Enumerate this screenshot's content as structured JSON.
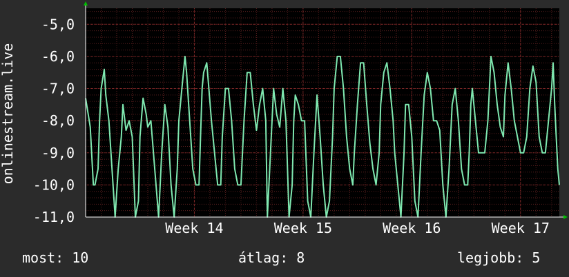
{
  "colors": {
    "background": "#2b2b2b",
    "plot_background": "#000000",
    "grid_minor": "#5a1e1e",
    "grid_major": "#8a2a2a",
    "line": "#7fe8b0",
    "axis_arrow": "#00c000",
    "text": "#ffffff"
  },
  "chart_data": {
    "type": "line",
    "title": "",
    "xlabel": "",
    "ylabel": "onlinestream.live",
    "ylim": [
      -11.0,
      -4.5
    ],
    "grid": true,
    "yticks": [
      -5.0,
      -6.0,
      -7.0,
      -8.0,
      -9.0,
      -10.0,
      -11.0
    ],
    "ytick_labels": [
      "-5,0",
      "-6,0",
      "-7,0",
      "-8,0",
      "-9,0",
      "-10,0",
      "-11,0"
    ],
    "xlim": [
      0,
      30.5
    ],
    "xticks": [
      7,
      14,
      21,
      28
    ],
    "xtick_labels": [
      "Week 14",
      "Week 15",
      "Week 16",
      "Week 17"
    ],
    "series": [
      {
        "values": [
          [
            0.0,
            -7.3
          ],
          [
            0.3,
            -8.2
          ],
          [
            0.5,
            -10.0
          ],
          [
            0.6,
            -10.0
          ],
          [
            0.8,
            -9.5
          ],
          [
            0.9,
            -8.0
          ],
          [
            1.0,
            -7.0
          ],
          [
            1.2,
            -6.4
          ],
          [
            1.3,
            -7.2
          ],
          [
            1.5,
            -8.0
          ],
          [
            1.7,
            -9.5
          ],
          [
            1.9,
            -11.0
          ],
          [
            2.1,
            -9.5
          ],
          [
            2.3,
            -8.5
          ],
          [
            2.4,
            -7.5
          ],
          [
            2.6,
            -8.3
          ],
          [
            2.8,
            -8.0
          ],
          [
            3.0,
            -8.5
          ],
          [
            3.2,
            -11.0
          ],
          [
            3.4,
            -10.5
          ],
          [
            3.5,
            -8.5
          ],
          [
            3.7,
            -7.3
          ],
          [
            3.9,
            -7.8
          ],
          [
            4.0,
            -8.2
          ],
          [
            4.2,
            -8.0
          ],
          [
            4.5,
            -9.8
          ],
          [
            4.7,
            -11.0
          ],
          [
            4.9,
            -9.0
          ],
          [
            5.1,
            -7.5
          ],
          [
            5.3,
            -8.2
          ],
          [
            5.5,
            -10.0
          ],
          [
            5.7,
            -11.0
          ],
          [
            5.9,
            -9.5
          ],
          [
            6.0,
            -8.0
          ],
          [
            6.2,
            -7.0
          ],
          [
            6.4,
            -6.0
          ],
          [
            6.5,
            -6.5
          ],
          [
            6.7,
            -8.0
          ],
          [
            6.9,
            -9.5
          ],
          [
            7.1,
            -10.0
          ],
          [
            7.3,
            -10.0
          ],
          [
            7.4,
            -8.5
          ],
          [
            7.5,
            -7.0
          ],
          [
            7.6,
            -6.5
          ],
          [
            7.8,
            -6.2
          ],
          [
            7.9,
            -6.8
          ],
          [
            8.1,
            -8.0
          ],
          [
            8.3,
            -9.0
          ],
          [
            8.5,
            -10.0
          ],
          [
            8.7,
            -10.0
          ],
          [
            8.8,
            -8.5
          ],
          [
            9.0,
            -7.0
          ],
          [
            9.2,
            -7.0
          ],
          [
            9.4,
            -8.0
          ],
          [
            9.6,
            -9.5
          ],
          [
            9.8,
            -10.0
          ],
          [
            10.0,
            -10.0
          ],
          [
            10.2,
            -8.0
          ],
          [
            10.4,
            -6.5
          ],
          [
            10.6,
            -6.5
          ],
          [
            10.8,
            -7.5
          ],
          [
            11.0,
            -8.3
          ],
          [
            11.2,
            -7.5
          ],
          [
            11.4,
            -7.0
          ],
          [
            11.6,
            -8.0
          ],
          [
            11.7,
            -11.0
          ],
          [
            11.9,
            -9.0
          ],
          [
            12.1,
            -7.0
          ],
          [
            12.3,
            -7.8
          ],
          [
            12.5,
            -8.2
          ],
          [
            12.7,
            -7.0
          ],
          [
            12.9,
            -8.0
          ],
          [
            13.1,
            -11.0
          ],
          [
            13.3,
            -10.0
          ],
          [
            13.4,
            -8.0
          ],
          [
            13.5,
            -7.2
          ],
          [
            13.7,
            -7.5
          ],
          [
            13.9,
            -8.0
          ],
          [
            14.1,
            -8.0
          ],
          [
            14.3,
            -10.5
          ],
          [
            14.5,
            -11.0
          ],
          [
            14.7,
            -9.0
          ],
          [
            14.9,
            -7.2
          ],
          [
            15.1,
            -8.5
          ],
          [
            15.3,
            -10.0
          ],
          [
            15.5,
            -11.0
          ],
          [
            15.7,
            -10.5
          ],
          [
            15.9,
            -8.5
          ],
          [
            16.0,
            -7.0
          ],
          [
            16.2,
            -6.0
          ],
          [
            16.4,
            -6.0
          ],
          [
            16.6,
            -7.0
          ],
          [
            16.8,
            -8.5
          ],
          [
            17.0,
            -9.5
          ],
          [
            17.2,
            -10.0
          ],
          [
            17.3,
            -9.0
          ],
          [
            17.5,
            -7.5
          ],
          [
            17.7,
            -6.2
          ],
          [
            17.9,
            -6.2
          ],
          [
            18.1,
            -7.5
          ],
          [
            18.3,
            -8.7
          ],
          [
            18.5,
            -9.5
          ],
          [
            18.7,
            -10.0
          ],
          [
            18.9,
            -9.0
          ],
          [
            19.0,
            -7.5
          ],
          [
            19.2,
            -6.5
          ],
          [
            19.4,
            -6.2
          ],
          [
            19.6,
            -7.0
          ],
          [
            19.8,
            -8.0
          ],
          [
            19.9,
            -9.0
          ],
          [
            20.1,
            -10.0
          ],
          [
            20.3,
            -11.0
          ],
          [
            20.5,
            -9.0
          ],
          [
            20.6,
            -7.5
          ],
          [
            20.8,
            -7.5
          ],
          [
            21.0,
            -8.5
          ],
          [
            21.2,
            -10.5
          ],
          [
            21.4,
            -11.0
          ],
          [
            21.6,
            -9.0
          ],
          [
            21.8,
            -7.2
          ],
          [
            22.0,
            -6.5
          ],
          [
            22.2,
            -7.0
          ],
          [
            22.4,
            -8.0
          ],
          [
            22.6,
            -8.0
          ],
          [
            22.8,
            -8.3
          ],
          [
            23.0,
            -10.0
          ],
          [
            23.2,
            -11.0
          ],
          [
            23.4,
            -9.5
          ],
          [
            23.6,
            -7.5
          ],
          [
            23.8,
            -7.0
          ],
          [
            24.0,
            -8.0
          ],
          [
            24.2,
            -9.5
          ],
          [
            24.4,
            -10.0
          ],
          [
            24.6,
            -10.0
          ],
          [
            24.7,
            -9.0
          ],
          [
            24.8,
            -7.5
          ],
          [
            24.9,
            -7.0
          ],
          [
            25.1,
            -8.0
          ],
          [
            25.3,
            -9.0
          ],
          [
            25.5,
            -9.0
          ],
          [
            25.7,
            -9.0
          ],
          [
            25.9,
            -8.0
          ],
          [
            26.1,
            -6.0
          ],
          [
            26.3,
            -6.5
          ],
          [
            26.5,
            -7.5
          ],
          [
            26.7,
            -8.2
          ],
          [
            26.9,
            -8.5
          ],
          [
            27.0,
            -7.2
          ],
          [
            27.2,
            -6.2
          ],
          [
            27.4,
            -7.0
          ],
          [
            27.6,
            -8.0
          ],
          [
            27.8,
            -8.5
          ],
          [
            28.0,
            -9.0
          ],
          [
            28.2,
            -9.0
          ],
          [
            28.4,
            -8.5
          ],
          [
            28.6,
            -7.0
          ],
          [
            28.8,
            -6.3
          ],
          [
            29.0,
            -6.8
          ],
          [
            29.2,
            -8.5
          ],
          [
            29.4,
            -9.0
          ],
          [
            29.6,
            -9.0
          ],
          [
            29.8,
            -8.0
          ],
          [
            30.0,
            -7.0
          ],
          [
            30.1,
            -6.2
          ],
          [
            30.2,
            -7.5
          ],
          [
            30.3,
            -8.5
          ],
          [
            30.4,
            -9.5
          ],
          [
            30.5,
            -10.0
          ]
        ]
      }
    ]
  },
  "stats": {
    "current": "most: 10",
    "average": "átlag: 8",
    "best": "legjobb: 5"
  }
}
